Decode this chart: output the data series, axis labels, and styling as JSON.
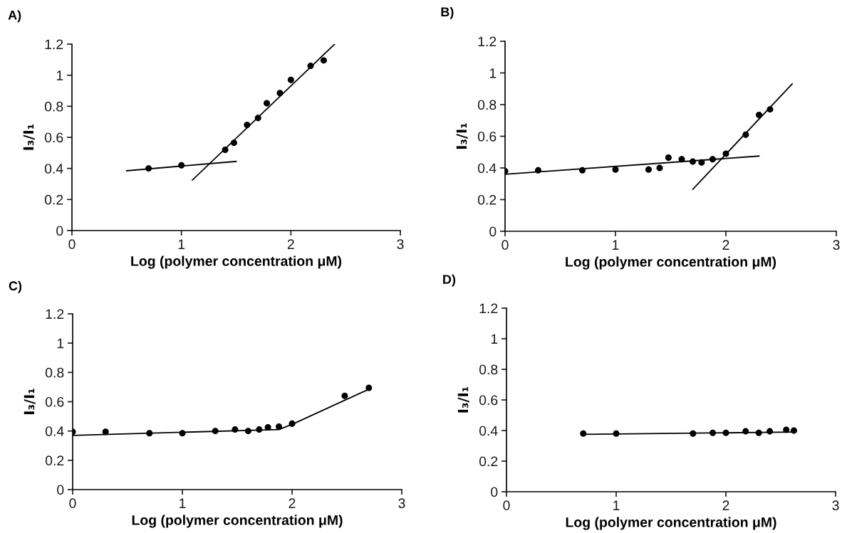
{
  "chart_data": [
    {
      "type": "scatter",
      "title": "A)",
      "xlabel": "Log (polymer concentration μM)",
      "ylabel": "I₃/I₁",
      "xlim": [
        0,
        3
      ],
      "xticks": [
        0,
        1,
        2,
        3
      ],
      "ylim": [
        0,
        1.2
      ],
      "yticks": [
        0,
        0.2,
        0.4,
        0.6,
        0.8,
        1,
        1.2
      ],
      "grid": false,
      "series": [
        {
          "marker": "circle",
          "color": "#000000",
          "x": [
            0.7,
            1.0,
            1.4,
            1.48,
            1.6,
            1.7,
            1.78,
            1.9,
            2.0,
            2.18,
            2.3
          ],
          "values": [
            0.4,
            0.42,
            0.52,
            0.565,
            0.68,
            0.725,
            0.82,
            0.885,
            0.97,
            1.06,
            1.095
          ]
        },
        {
          "type": "line",
          "marker": "none",
          "line_style": "solid",
          "color": "#000000",
          "x": [
            0.5,
            1.5
          ],
          "values": [
            0.385,
            0.445
          ]
        },
        {
          "type": "line",
          "marker": "none",
          "line_style": "solid",
          "color": "#000000",
          "x": [
            1.1,
            2.4
          ],
          "values": [
            0.325,
            1.2
          ]
        }
      ]
    },
    {
      "type": "scatter",
      "title": "B)",
      "xlabel": "Log (polymer concentration μM)",
      "ylabel": "I₃/I₁",
      "xlim": [
        0,
        3
      ],
      "xticks": [
        0,
        1,
        2,
        3
      ],
      "ylim": [
        0,
        1.2
      ],
      "yticks": [
        0,
        0.2,
        0.4,
        0.6,
        0.8,
        1,
        1.2
      ],
      "grid": false,
      "series": [
        {
          "marker": "circle",
          "color": "#000000",
          "x": [
            0,
            0.3,
            0.7,
            1.0,
            1.3,
            1.4,
            1.48,
            1.6,
            1.7,
            1.78,
            1.88,
            2.0,
            2.18,
            2.3,
            2.4
          ],
          "values": [
            0.38,
            0.385,
            0.385,
            0.39,
            0.39,
            0.4,
            0.465,
            0.455,
            0.44,
            0.435,
            0.455,
            0.49,
            0.61,
            0.735,
            0.77
          ]
        },
        {
          "type": "line",
          "marker": "none",
          "line_style": "solid",
          "color": "#000000",
          "x": [
            0,
            2.3
          ],
          "values": [
            0.36,
            0.475
          ]
        },
        {
          "type": "line",
          "marker": "none",
          "line_style": "solid",
          "color": "#000000",
          "x": [
            1.7,
            2.6
          ],
          "values": [
            0.265,
            0.93
          ]
        }
      ]
    },
    {
      "type": "scatter",
      "title": "C)",
      "xlabel": "Log (polymer concentration μM)",
      "ylabel": "I₃/I₁",
      "xlim": [
        0,
        3
      ],
      "xticks": [
        0,
        1,
        2,
        3
      ],
      "ylim": [
        0,
        1.2
      ],
      "yticks": [
        0,
        0.2,
        0.4,
        0.6,
        0.8,
        1,
        1.2
      ],
      "grid": false,
      "series": [
        {
          "marker": "circle",
          "color": "#000000",
          "x": [
            0,
            0.3,
            0.7,
            1.0,
            1.3,
            1.48,
            1.6,
            1.7,
            1.78,
            1.88,
            2.0,
            2.48,
            2.7
          ],
          "values": [
            0.395,
            0.395,
            0.385,
            0.385,
            0.4,
            0.41,
            0.4,
            0.41,
            0.425,
            0.43,
            0.45,
            0.64,
            0.695
          ]
        },
        {
          "type": "line",
          "marker": "none",
          "line_style": "solid",
          "color": "#000000",
          "x": [
            0,
            1.88,
            2.0,
            2.7
          ],
          "values": [
            0.37,
            0.41,
            0.445,
            0.685
          ]
        }
      ]
    },
    {
      "type": "scatter",
      "title": "D)",
      "xlabel": "Log (polymer concentration μM)",
      "ylabel": "I₃/I₁",
      "xlim": [
        0,
        3
      ],
      "xticks": [
        0,
        1,
        2,
        3
      ],
      "ylim": [
        0,
        1.2
      ],
      "yticks": [
        0,
        0.2,
        0.4,
        0.6,
        0.8,
        1,
        1.2
      ],
      "grid": false,
      "series": [
        {
          "marker": "circle",
          "color": "#000000",
          "x": [
            0.7,
            1.0,
            1.7,
            1.88,
            2.0,
            2.18,
            2.3,
            2.4,
            2.55,
            2.62
          ],
          "values": [
            0.38,
            0.38,
            0.38,
            0.385,
            0.385,
            0.395,
            0.385,
            0.395,
            0.405,
            0.4
          ]
        },
        {
          "type": "line",
          "marker": "none",
          "line_style": "solid",
          "color": "#000000",
          "x": [
            0.7,
            2.62
          ],
          "values": [
            0.375,
            0.39
          ]
        }
      ]
    }
  ]
}
